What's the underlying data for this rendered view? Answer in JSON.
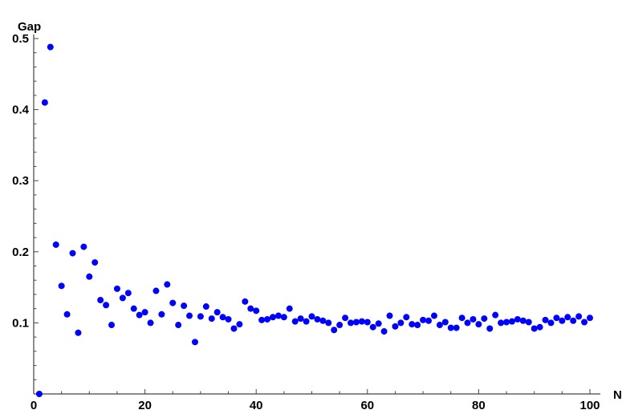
{
  "chart_data": {
    "type": "scatter",
    "title": "",
    "xlabel": "N",
    "ylabel": "Gap",
    "xlim": [
      0,
      100
    ],
    "ylim": [
      0,
      0.5
    ],
    "x_ticks": [
      0,
      20,
      40,
      60,
      80,
      100
    ],
    "x_tick_labels": [
      "0",
      "20",
      "40",
      "60",
      "80",
      "100"
    ],
    "y_ticks": [
      0.1,
      0.2,
      0.3,
      0.4,
      0.5
    ],
    "y_tick_labels": [
      "0.1",
      "0.2",
      "0.3",
      "0.4",
      "0.5"
    ],
    "grid": false,
    "marker_color": "#0000ff",
    "series": [
      {
        "x": [
          1,
          2,
          3,
          4,
          5,
          6,
          7,
          8,
          9,
          10,
          11,
          12,
          13,
          14,
          15,
          16,
          17,
          18,
          19,
          20,
          21,
          22,
          23,
          24,
          25,
          26,
          27,
          28,
          29,
          30,
          31,
          32,
          33,
          34,
          35,
          36,
          37,
          38,
          39,
          40,
          41,
          42,
          43,
          44,
          45,
          46,
          47,
          48,
          49,
          50,
          51,
          52,
          53,
          54,
          55,
          56,
          57,
          58,
          59,
          60,
          61,
          62,
          63,
          64,
          65,
          66,
          67,
          68,
          69,
          70,
          71,
          72,
          73,
          74,
          75,
          76,
          77,
          78,
          79,
          80,
          81,
          82,
          83,
          84,
          85,
          86,
          87,
          88,
          89,
          90,
          91,
          92,
          93,
          94,
          95,
          96,
          97,
          98,
          99,
          100
        ],
        "y": [
          0.0,
          0.41,
          0.488,
          0.21,
          0.152,
          0.112,
          0.198,
          0.086,
          0.207,
          0.165,
          0.185,
          0.132,
          0.125,
          0.097,
          0.148,
          0.135,
          0.142,
          0.12,
          0.111,
          0.115,
          0.1,
          0.145,
          0.112,
          0.154,
          0.128,
          0.097,
          0.124,
          0.11,
          0.073,
          0.109,
          0.123,
          0.106,
          0.115,
          0.108,
          0.105,
          0.092,
          0.098,
          0.13,
          0.12,
          0.117,
          0.104,
          0.105,
          0.108,
          0.11,
          0.108,
          0.12,
          0.102,
          0.106,
          0.102,
          0.109,
          0.105,
          0.103,
          0.1,
          0.09,
          0.097,
          0.107,
          0.1,
          0.101,
          0.102,
          0.101,
          0.094,
          0.099,
          0.088,
          0.11,
          0.095,
          0.1,
          0.108,
          0.098,
          0.097,
          0.104,
          0.103,
          0.11,
          0.097,
          0.101,
          0.093,
          0.093,
          0.107,
          0.1,
          0.105,
          0.098,
          0.106,
          0.092,
          0.111,
          0.1,
          0.101,
          0.102,
          0.105,
          0.103,
          0.101,
          0.092,
          0.094,
          0.104,
          0.1,
          0.107,
          0.103,
          0.108,
          0.103,
          0.109,
          0.101,
          0.107
        ]
      }
    ]
  }
}
